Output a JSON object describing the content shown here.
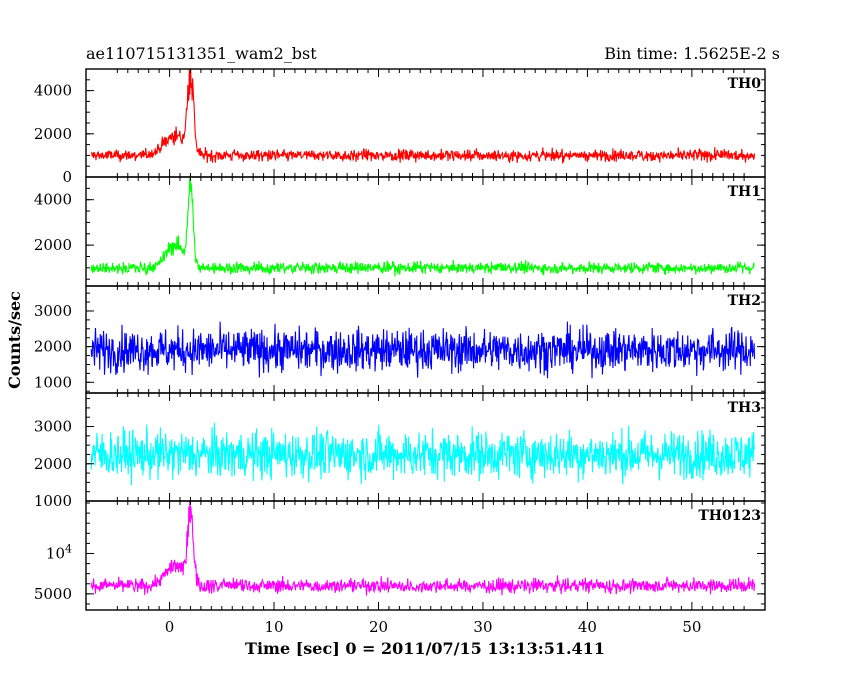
{
  "chart_data": {
    "type": "line",
    "title_left": "ae110715131351_wam2_bst",
    "title_right": "Bin time: 1.5625E-2 s",
    "xlabel": "Time [sec] 0 = 2011/07/15 13:13:51.411",
    "ylabel": "Counts/sec",
    "xlim": [
      -8,
      57
    ],
    "x_ticks": [
      0,
      10,
      20,
      30,
      40,
      50
    ],
    "grid": false,
    "colors": [
      "#ff0000",
      "#00ff00",
      "#0000ff",
      "#00ffff",
      "#ff00ff"
    ],
    "panels": [
      {
        "name": "TH0",
        "ylim": [
          0,
          5000
        ],
        "y_ticks": [
          0,
          2000,
          4000
        ],
        "y_tick_labels": [
          "0",
          "2000",
          "4000"
        ],
        "baseline": 1000,
        "noise": 300,
        "peaks": [
          {
            "x": 0.5,
            "height": 900,
            "width": 1.5
          },
          {
            "x": 2.0,
            "height": 3600,
            "width": 0.4
          }
        ],
        "x_range": [
          -7.5,
          56
        ]
      },
      {
        "name": "TH1",
        "ylim": [
          200,
          5000
        ],
        "y_ticks": [
          2000,
          4000
        ],
        "y_tick_labels": [
          "2000",
          "4000"
        ],
        "baseline": 1000,
        "noise": 280,
        "peaks": [
          {
            "x": 0.5,
            "height": 1000,
            "width": 1.2
          },
          {
            "x": 2.0,
            "height": 3400,
            "width": 0.35
          }
        ],
        "x_range": [
          -7.5,
          56
        ]
      },
      {
        "name": "TH2",
        "ylim": [
          700,
          3700
        ],
        "y_ticks": [
          1000,
          2000,
          3000
        ],
        "y_tick_labels": [
          "1000",
          "2000",
          "3000"
        ],
        "baseline": 1900,
        "noise": 650,
        "peaks": [],
        "x_range": [
          -7.5,
          56
        ]
      },
      {
        "name": "TH3",
        "ylim": [
          1000,
          3900
        ],
        "y_ticks": [
          1000,
          2000,
          3000
        ],
        "y_tick_labels": [
          "1000",
          "2000",
          "3000"
        ],
        "baseline": 2250,
        "noise": 700,
        "peaks": [],
        "x_range": [
          -7.5,
          56
        ]
      },
      {
        "name": "TH0123",
        "ylim": [
          3000,
          16500
        ],
        "y_ticks": [
          5000,
          10000
        ],
        "y_tick_labels": [
          "5000",
          "10^4"
        ],
        "baseline": 6000,
        "noise": 1000,
        "peaks": [
          {
            "x": 0.5,
            "height": 2500,
            "width": 1.3
          },
          {
            "x": 2.0,
            "height": 9000,
            "width": 0.4
          }
        ],
        "x_range": [
          -7.5,
          56
        ]
      }
    ]
  }
}
